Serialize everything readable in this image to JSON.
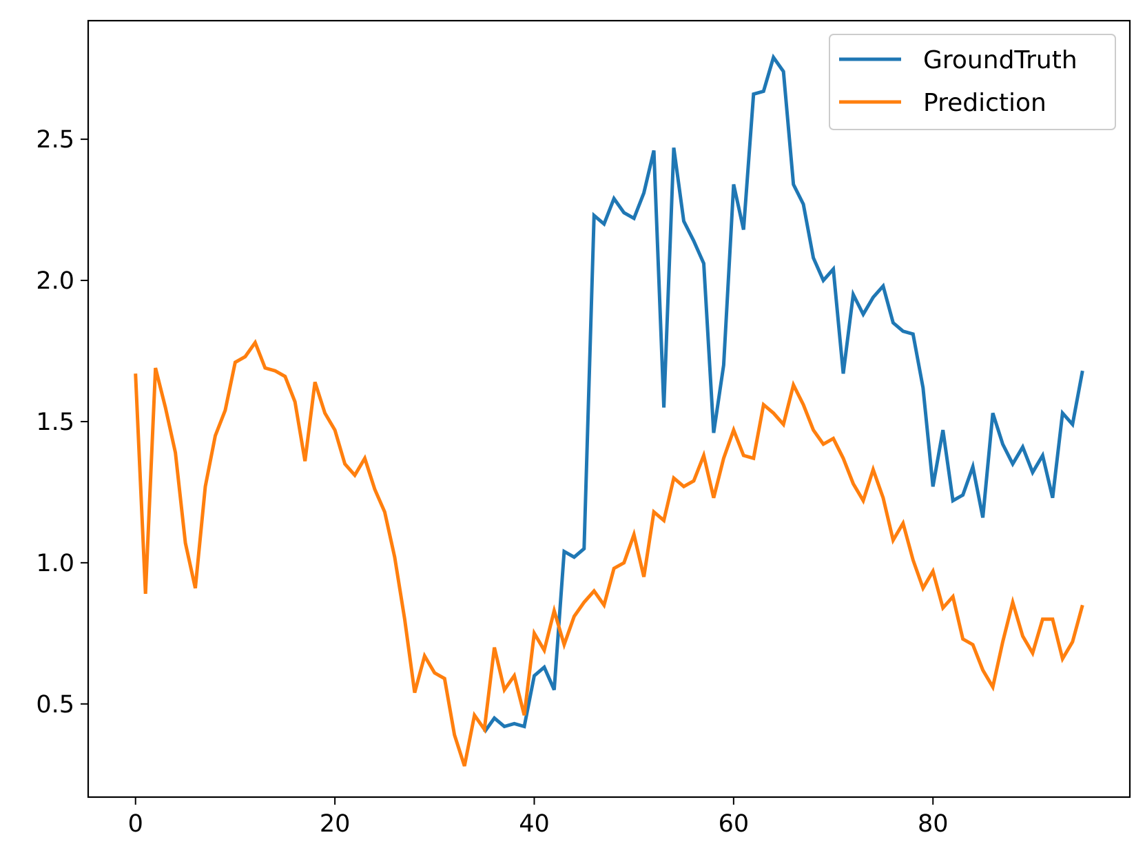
{
  "chart_data": {
    "type": "line",
    "title": "",
    "xlabel": "",
    "ylabel": "",
    "xlim": [
      -4.75,
      99.75
    ],
    "ylim": [
      0.17,
      2.92
    ],
    "x_ticks": [
      0,
      20,
      40,
      60,
      80
    ],
    "y_ticks": [
      0.5,
      1.0,
      1.5,
      2.0,
      2.5
    ],
    "x_tick_labels": [
      "0",
      "20",
      "40",
      "60",
      "80"
    ],
    "y_tick_labels": [
      "0.5",
      "1.0",
      "1.5",
      "2.0",
      "2.5"
    ],
    "grid": false,
    "legend_position": "top-right",
    "series": [
      {
        "name": "GroundTruth",
        "color": "#1f77b4",
        "x": [
          35,
          36,
          37,
          38,
          39,
          40,
          41,
          42,
          43,
          44,
          45,
          46,
          47,
          48,
          49,
          50,
          51,
          52,
          53,
          54,
          55,
          56,
          57,
          58,
          59,
          60,
          61,
          62,
          63,
          64,
          65,
          66,
          67,
          68,
          69,
          70,
          71,
          72,
          73,
          74,
          75,
          76,
          77,
          78,
          79,
          80,
          81,
          82,
          83,
          84,
          85,
          86,
          87,
          88,
          89,
          90,
          91,
          92,
          93,
          94,
          95
        ],
        "values": [
          0.4,
          0.45,
          0.42,
          0.43,
          0.42,
          0.6,
          0.63,
          0.55,
          1.04,
          1.02,
          1.05,
          2.23,
          2.2,
          2.29,
          2.24,
          2.22,
          2.31,
          2.46,
          1.55,
          2.47,
          2.21,
          2.14,
          2.06,
          1.46,
          1.7,
          2.34,
          2.18,
          2.66,
          2.67,
          2.79,
          2.74,
          2.34,
          2.27,
          2.08,
          2.0,
          2.04,
          1.67,
          1.95,
          1.88,
          1.94,
          1.98,
          1.85,
          1.82,
          1.81,
          1.62,
          1.27,
          1.47,
          1.22,
          1.24,
          1.34,
          1.16,
          1.53,
          1.42,
          1.35,
          1.41,
          1.32,
          1.38,
          1.23,
          1.53,
          1.49,
          1.68
        ]
      },
      {
        "name": "Prediction",
        "color": "#ff7f0e",
        "x": [
          0,
          1,
          2,
          3,
          4,
          5,
          6,
          7,
          8,
          9,
          10,
          11,
          12,
          13,
          14,
          15,
          16,
          17,
          18,
          19,
          20,
          21,
          22,
          23,
          24,
          25,
          26,
          27,
          28,
          29,
          30,
          31,
          32,
          33,
          34,
          35,
          36,
          37,
          38,
          39,
          40,
          41,
          42,
          43,
          44,
          45,
          46,
          47,
          48,
          49,
          50,
          51,
          52,
          53,
          54,
          55,
          56,
          57,
          58,
          59,
          60,
          61,
          62,
          63,
          64,
          65,
          66,
          67,
          68,
          69,
          70,
          71,
          72,
          73,
          74,
          75,
          76,
          77,
          78,
          79,
          80,
          81,
          82,
          83,
          84,
          85,
          86,
          87,
          88,
          89,
          90,
          91,
          92,
          93,
          94,
          95
        ],
        "values": [
          1.67,
          0.89,
          1.69,
          1.55,
          1.39,
          1.07,
          0.91,
          1.27,
          1.45,
          1.54,
          1.71,
          1.73,
          1.78,
          1.69,
          1.68,
          1.66,
          1.57,
          1.36,
          1.64,
          1.53,
          1.47,
          1.35,
          1.31,
          1.37,
          1.26,
          1.18,
          1.02,
          0.8,
          0.54,
          0.67,
          0.61,
          0.59,
          0.39,
          0.28,
          0.46,
          0.41,
          0.7,
          0.55,
          0.6,
          0.46,
          0.75,
          0.69,
          0.83,
          0.71,
          0.81,
          0.86,
          0.9,
          0.85,
          0.98,
          1.0,
          1.1,
          0.95,
          1.18,
          1.15,
          1.3,
          1.27,
          1.29,
          1.38,
          1.23,
          1.37,
          1.47,
          1.38,
          1.37,
          1.56,
          1.53,
          1.49,
          1.63,
          1.56,
          1.47,
          1.42,
          1.44,
          1.37,
          1.28,
          1.22,
          1.33,
          1.23,
          1.08,
          1.14,
          1.01,
          0.91,
          0.97,
          0.84,
          0.88,
          0.73,
          0.71,
          0.62,
          0.56,
          0.72,
          0.86,
          0.74,
          0.68,
          0.8,
          0.8,
          0.66,
          0.72,
          0.85
        ]
      }
    ]
  }
}
